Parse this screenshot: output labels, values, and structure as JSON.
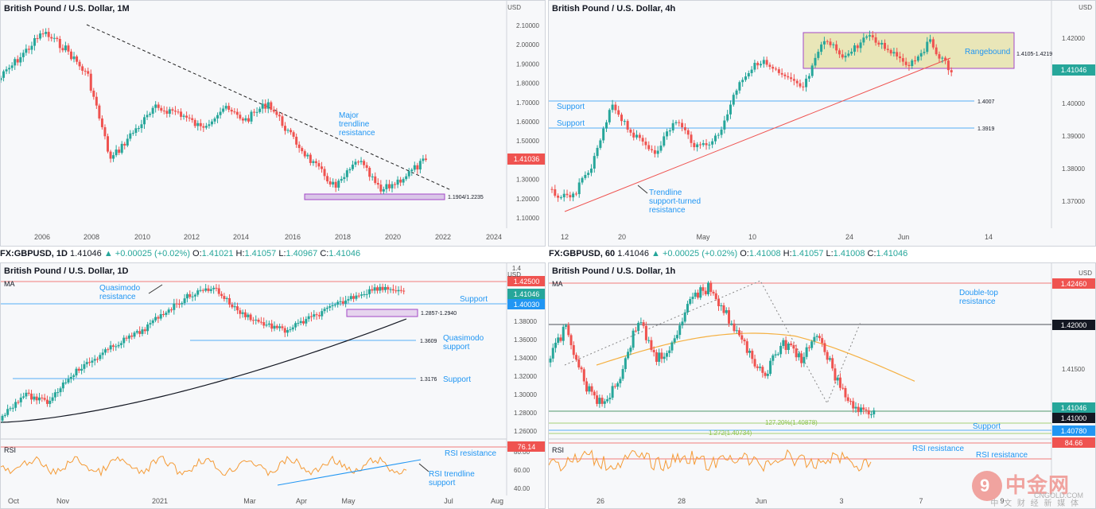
{
  "charts": [
    {
      "id": "monthly",
      "title": "British Pound / U.S. Dollar, 1M",
      "axis_unit": "USD",
      "price_label": "1.41036",
      "price_label_color": "#ef5350",
      "y_ticks": [
        "2.10000",
        "2.00000",
        "1.90000",
        "1.80000",
        "1.70000",
        "1.60000",
        "1.50000",
        "1.40000",
        "1.30000",
        "1.20000",
        "1.10000"
      ],
      "x_ticks": [
        "2006",
        "2008",
        "2010",
        "2012",
        "2014",
        "2016",
        "2018",
        "2020",
        "2022",
        "2024"
      ],
      "annotations": [
        "Major trendline resistance",
        "1.1904/1.2235"
      ]
    },
    {
      "id": "h4",
      "title": "British Pound / U.S. Dollar, 4h",
      "axis_unit": "USD",
      "price_label": "1.41046",
      "price_label_color": "#26a69a",
      "y_ticks": [
        "1.42000",
        "1.41000",
        "1.40000",
        "1.39000",
        "1.38000",
        "1.37000"
      ],
      "axis_top": "1",
      "x_ticks": [
        "12",
        "20",
        "May",
        "10",
        "24",
        "Jun",
        "14"
      ],
      "annotations": [
        "Rangebound",
        "1.4105-1.4219",
        "Support",
        "1.4007",
        "Support",
        "1.3919",
        "Trendline support-turned resistance"
      ]
    },
    {
      "id": "daily",
      "title": "British Pound / U.S. Dollar, 1D",
      "ohlc": {
        "symbol": "FX:GBPUSD, 1D",
        "last": "1.41046",
        "change": "▲ +0.00025 (+0.02%)",
        "o": "1.41021",
        "h": "1.41057",
        "l": "1.40967",
        "c": "1.41046"
      },
      "axis_unit": "USD",
      "price_labels": [
        "1.42500",
        "1.41046",
        "1.40030"
      ],
      "y_ticks": [
        "1.38000",
        "1.36000",
        "1.34000",
        "1.32000",
        "1.30000",
        "1.28000",
        "1.26000"
      ],
      "axis_top": "1.4",
      "x_ticks": [
        "Oct",
        "Nov",
        "2021",
        "Mar",
        "Apr",
        "May",
        "Jul",
        "Aug"
      ],
      "indicator_ma": "MA",
      "indicator_rsi": "RSI",
      "rsi_label": "76.14",
      "rsi_ticks": [
        "80.00",
        "60.00",
        "40.00"
      ],
      "annotations": [
        "Quasimodo resistance",
        "Support",
        "1.2857-1.2940",
        "1.3609",
        "Quasimodo support",
        "1.3176",
        "Support",
        "RSI resistance",
        "RSI trendline support"
      ]
    },
    {
      "id": "h1",
      "title": "British Pound / U.S. Dollar, 1h",
      "ohlc": {
        "symbol": "FX:GBPUSD, 60",
        "last": "1.41046",
        "change": "▲ +0.00025 (+0.02%)",
        "o": "1.41008",
        "h": "1.41057",
        "l": "1.41008",
        "c": "1.41046"
      },
      "axis_unit": "USD",
      "price_labels": [
        "1.42460",
        "1.42000",
        "1.41046",
        "1.41000",
        "1.40780"
      ],
      "y_ticks": [
        "1.41500"
      ],
      "x_ticks": [
        "26",
        "28",
        "Jun",
        "3",
        "7",
        "9"
      ],
      "indicator_ma": "MA",
      "indicator_rsi": "RSI",
      "rsi_label": "84.66",
      "annotations": [
        "Double-top resistance",
        "127.20%(1.40878)",
        "1.272(1.40734)",
        "Support",
        "RSI resistance",
        "RSI resistance"
      ]
    }
  ],
  "logo": {
    "name": "中金网",
    "site": "CNGOLD.COM",
    "tagline": "中 文 财 经 新 媒 体"
  }
}
